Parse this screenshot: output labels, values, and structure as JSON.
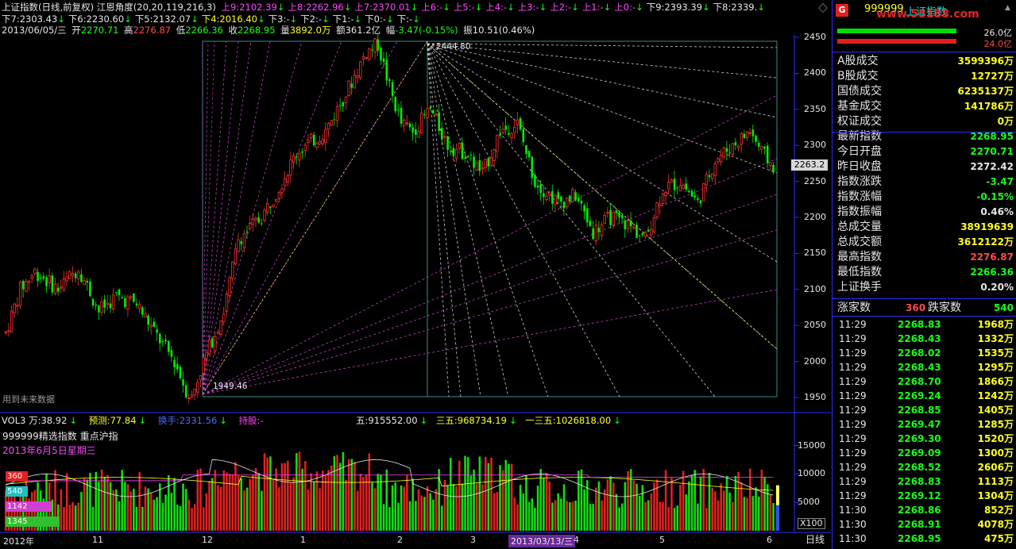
{
  "header": {
    "title": "上证指数(日线,前复权) 江恩角度(20,20,119,216,3)",
    "gann_up": [
      {
        "label": "上9:",
        "value": "2102.39"
      },
      {
        "label": "上8:",
        "value": "2262.96"
      },
      {
        "label": "上7:",
        "value": "2370.01"
      },
      {
        "label": "上6:",
        "value": "-"
      },
      {
        "label": "上5:",
        "value": "-"
      },
      {
        "label": "上4:",
        "value": "-"
      },
      {
        "label": "上3:",
        "value": "-"
      },
      {
        "label": "上2:",
        "value": "-"
      },
      {
        "label": "上1:",
        "value": "-"
      },
      {
        "label": "上0:",
        "value": "-"
      },
      {
        "label": "下9:",
        "value": "2393.39"
      },
      {
        "label": "下8:",
        "value": "2339."
      }
    ],
    "gann_down": [
      {
        "label": "下7:",
        "value": "2303.43"
      },
      {
        "label": "下6:",
        "value": "2230.60"
      },
      {
        "label": "下5:",
        "value": "2132.07"
      },
      {
        "label": "下4:",
        "value": "2016.40"
      },
      {
        "label": "下3:",
        "value": "-"
      },
      {
        "label": "下2:",
        "value": "-"
      },
      {
        "label": "下1:",
        "value": "-"
      },
      {
        "label": "下0:",
        "value": "-"
      },
      {
        "label": "下:",
        "value": "-"
      }
    ],
    "ohlc": {
      "date": "2013/06/05/三",
      "open_label": "开",
      "open": "2270.71",
      "high_label": "高",
      "high": "2276.87",
      "low_label": "低",
      "low": "2266.36",
      "close_label": "收",
      "close": "2268.95",
      "vol_label": "量",
      "vol": "3892.0万",
      "amt_label": "额",
      "amt": "361.2亿",
      "chg_label": "幅",
      "chg": "-3.47(-0.15%)",
      "amp_label": "振",
      "amp": "10.51(0.46%)"
    }
  },
  "main_chart": {
    "y_ticks": [
      "2450",
      "2400",
      "2350",
      "2300",
      "2250",
      "2200",
      "2150",
      "2100",
      "2050",
      "2000",
      "1950"
    ],
    "price_tag": "2263.2",
    "annotations": {
      "high": "2444.80",
      "low": "1949.46",
      "note": "用到未来数据"
    }
  },
  "volume_panel": {
    "legend": [
      {
        "label": "VOL3 万:",
        "value": "38.92"
      },
      {
        "label": "预测:",
        "value": "77.84"
      },
      {
        "label": "换手:",
        "value": "2331.56"
      },
      {
        "label": "持股:",
        "value": "-"
      },
      {
        "label": "五:",
        "value": "915552.00"
      },
      {
        "label": "三五:",
        "value": "968734.19"
      },
      {
        "label": "一三五:",
        "value": "1026818.00"
      }
    ],
    "subtitle": "999999精选指数 重点沪指",
    "date_text": "2013年6月5日星期三",
    "y_ticks": [
      "15000",
      "10000",
      "5000"
    ],
    "unit": "X100",
    "count_badges": [
      "360",
      "540",
      "1142",
      "1345"
    ]
  },
  "x_axis": {
    "labels": [
      "2012年",
      "11",
      "12",
      "1",
      "2",
      "3",
      "2013/03/13/三",
      "4",
      "5",
      "6"
    ],
    "period": "日线"
  },
  "side_panel": {
    "code": "999999",
    "name": "上证指数",
    "watermark": "www.55188.com",
    "top_values": [
      "26.0亿",
      "24.0亿"
    ],
    "stats": [
      {
        "label": "A股成交",
        "value": "3599396万",
        "color": "#ffff22"
      },
      {
        "label": "B股成交",
        "value": "12727万",
        "color": "#ffff22"
      },
      {
        "label": "国债成交",
        "value": "6235137万",
        "color": "#ffff22"
      },
      {
        "label": "基金成交",
        "value": "141786万",
        "color": "#ffff22"
      },
      {
        "label": "权证成交",
        "value": "0万",
        "color": "#ffff22"
      },
      {
        "label": "最新指数",
        "value": "2268.95",
        "color": "#17ff17"
      },
      {
        "label": "今日开盘",
        "value": "2270.71",
        "color": "#17ff17"
      },
      {
        "label": "昨日收盘",
        "value": "2272.42",
        "color": "#e6e6e6"
      },
      {
        "label": "指数涨跌",
        "value": "-3.47",
        "color": "#17ff17"
      },
      {
        "label": "指数涨幅",
        "value": "-0.15%",
        "color": "#17ff17"
      },
      {
        "label": "指数振幅",
        "value": "0.46%",
        "color": "#e6e6e6"
      },
      {
        "label": "总成交量",
        "value": "38919639",
        "color": "#ffff22"
      },
      {
        "label": "总成交额",
        "value": "3612122万",
        "color": "#ffff22"
      },
      {
        "label": "最高指数",
        "value": "2276.87",
        "color": "#ff4a4a"
      },
      {
        "label": "最低指数",
        "value": "2266.36",
        "color": "#17ff17"
      },
      {
        "label": "上证换手",
        "value": "0.20%",
        "color": "#e6e6e6"
      }
    ],
    "breadth": {
      "up_label": "涨家数",
      "up": "360",
      "down_label": "跌家数",
      "down": "540"
    },
    "ticks": [
      {
        "time": "11:29",
        "price": "2268.83",
        "vol": "1968万"
      },
      {
        "time": "11:29",
        "price": "2268.43",
        "vol": "1332万"
      },
      {
        "time": "11:29",
        "price": "2268.02",
        "vol": "1535万"
      },
      {
        "time": "11:29",
        "price": "2268.43",
        "vol": "1295万"
      },
      {
        "time": "11:29",
        "price": "2268.70",
        "vol": "1866万"
      },
      {
        "time": "11:29",
        "price": "2269.24",
        "vol": "1242万"
      },
      {
        "time": "11:29",
        "price": "2268.85",
        "vol": "1405万"
      },
      {
        "time": "11:29",
        "price": "2269.47",
        "vol": "1285万"
      },
      {
        "time": "11:29",
        "price": "2269.30",
        "vol": "1520万"
      },
      {
        "time": "11:29",
        "price": "2269.09",
        "vol": "1300万"
      },
      {
        "time": "11:29",
        "price": "2268.52",
        "vol": "2606万"
      },
      {
        "time": "11:29",
        "price": "2268.83",
        "vol": "1113万"
      },
      {
        "time": "11:29",
        "price": "2269.12",
        "vol": "1304万"
      },
      {
        "time": "11:30",
        "price": "2268.86",
        "vol": "852万"
      },
      {
        "time": "11:30",
        "price": "2268.91",
        "vol": "4078万"
      },
      {
        "time": "11:30",
        "price": "2268.95",
        "vol": "475万"
      }
    ]
  },
  "colors": {
    "up": "#ff3030",
    "down": "#00ee00",
    "axis": "#2b2bff",
    "gann_up": "#c040c0",
    "gann_down": "#d0d0d0"
  }
}
